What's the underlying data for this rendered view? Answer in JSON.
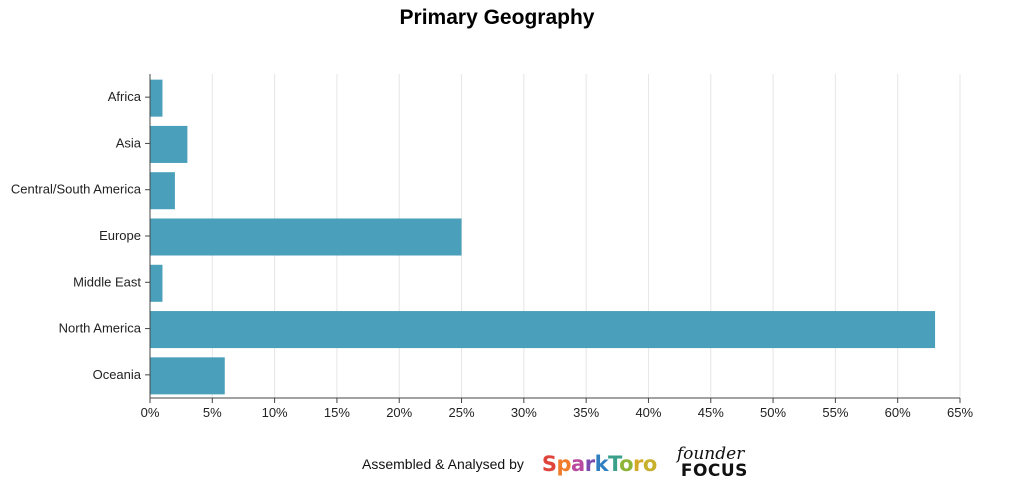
{
  "chart_data": {
    "type": "bar",
    "orientation": "horizontal",
    "title": "Primary Geography",
    "categories": [
      "Africa",
      "Asia",
      "Central/South America",
      "Europe",
      "Middle East",
      "North America",
      "Oceania"
    ],
    "values": [
      1,
      3,
      2,
      25,
      1,
      63,
      6
    ],
    "xlim": [
      0,
      65
    ],
    "x_ticks": [
      "0%",
      "5%",
      "10%",
      "15%",
      "20%",
      "25%",
      "30%",
      "35%",
      "40%",
      "45%",
      "50%",
      "55%",
      "60%",
      "65%"
    ],
    "xlabel": "",
    "ylabel": "",
    "grid": "vertical",
    "bar_color": "#4a9fba"
  },
  "footer": {
    "text": "Assembled & Analysed by",
    "logo1": "SparkToro",
    "logo2_top": "founder",
    "logo2_bottom": "FOCUS"
  }
}
